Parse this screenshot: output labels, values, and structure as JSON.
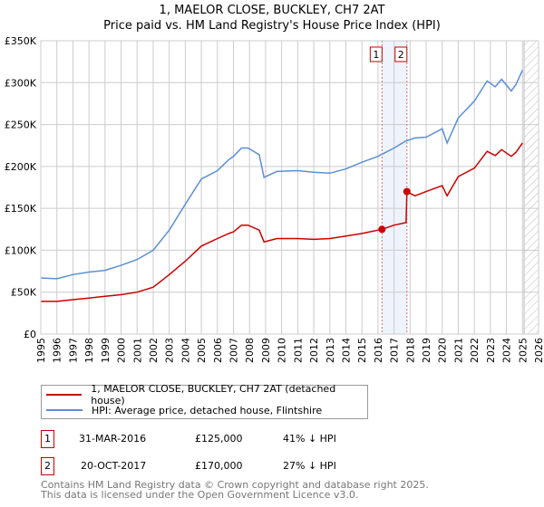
{
  "title": "1, MAELOR CLOSE, BUCKLEY, CH7 2AT",
  "subtitle": "Price paid vs. HM Land Registry's House Price Index (HPI)",
  "colors": {
    "property": "#cc0000",
    "hpi": "#5b8fd4",
    "grid": "#cccccc",
    "shade": "#eef3fc"
  },
  "chart_data": {
    "type": "line",
    "title": "1, MAELOR CLOSE, BUCKLEY, CH7 2AT — Price paid vs. HM Land Registry's House Price Index (HPI)",
    "xlim": [
      1995,
      2026
    ],
    "ylim": [
      0,
      350000
    ],
    "x_ticks": [
      "1995",
      "1996",
      "1997",
      "1998",
      "1999",
      "2000",
      "2001",
      "2002",
      "2003",
      "2004",
      "2005",
      "2006",
      "2007",
      "2008",
      "2009",
      "2010",
      "2011",
      "2012",
      "2013",
      "2014",
      "2015",
      "2016",
      "2017",
      "2018",
      "2019",
      "2020",
      "2021",
      "2022",
      "2023",
      "2024",
      "2025",
      "2026"
    ],
    "y_ticks": [
      {
        "v": 0,
        "label": "£0"
      },
      {
        "v": 50000,
        "label": "£50K"
      },
      {
        "v": 100000,
        "label": "£100K"
      },
      {
        "v": 150000,
        "label": "£150K"
      },
      {
        "v": 200000,
        "label": "£200K"
      },
      {
        "v": 250000,
        "label": "£250K"
      },
      {
        "v": 300000,
        "label": "£300K"
      },
      {
        "v": 350000,
        "label": "£350K"
      }
    ],
    "grid": true,
    "forecast_hatch_from": 2025.1,
    "shaded_range": [
      2016.25,
      2017.8
    ],
    "series": [
      {
        "name": "1, MAELOR CLOSE, BUCKLEY, CH7 2AT (detached house)",
        "color": "#cc0000",
        "x": [
          1995,
          1996,
          1997,
          1998,
          1999,
          2000,
          2001,
          2002,
          2003,
          2004,
          2005,
          2006,
          2006.7,
          2007,
          2007.5,
          2007.9,
          2008.6,
          2008.9,
          2009.7,
          2011,
          2012,
          2013,
          2014,
          2015,
          2016.25,
          2017,
          2017.75,
          2017.8,
          2018.3,
          2019,
          2020,
          2020.3,
          2021,
          2022,
          2022.8,
          2023.3,
          2023.7,
          2024.3,
          2024.6,
          2025
        ],
        "y": [
          39000,
          39000,
          41000,
          43000,
          45000,
          47000,
          50000,
          56000,
          71000,
          87000,
          105000,
          114000,
          120000,
          122000,
          130000,
          130000,
          124000,
          110000,
          114000,
          114000,
          113000,
          114000,
          117000,
          120000,
          125000,
          130000,
          133000,
          170000,
          165000,
          170000,
          177000,
          165000,
          188000,
          198000,
          218000,
          213000,
          220000,
          212000,
          217000,
          228000
        ]
      },
      {
        "name": "HPI: Average price, detached house, Flintshire",
        "color": "#5b8fd4",
        "x": [
          1995,
          1996,
          1997,
          1998,
          1999,
          2000,
          2001,
          2002,
          2003,
          2004,
          2005,
          2006,
          2006.7,
          2007,
          2007.5,
          2007.9,
          2008.6,
          2008.9,
          2009.7,
          2011,
          2012,
          2013,
          2014,
          2015,
          2016,
          2017,
          2017.7,
          2018.3,
          2019,
          2020,
          2020.3,
          2021,
          2022,
          2022.8,
          2023.3,
          2023.7,
          2024.3,
          2024.6,
          2025
        ],
        "y": [
          67000,
          66000,
          71000,
          74000,
          76000,
          82000,
          89000,
          100000,
          124000,
          155000,
          185000,
          195000,
          208000,
          212000,
          222000,
          222000,
          214000,
          187000,
          194000,
          195000,
          193000,
          192000,
          197000,
          205000,
          212000,
          222000,
          230000,
          234000,
          235000,
          245000,
          228000,
          258000,
          278000,
          302000,
          295000,
          304000,
          290000,
          298000,
          315000
        ]
      }
    ],
    "sales": [
      {
        "id": "1",
        "x": 2016.25,
        "y": 125000
      },
      {
        "id": "2",
        "x": 2017.8,
        "y": 170000
      }
    ],
    "legend_position": "bottom"
  },
  "table": [
    {
      "id": "1",
      "date": "31-MAR-2016",
      "price": "£125,000",
      "hpi": "41% ↓ HPI"
    },
    {
      "id": "2",
      "date": "20-OCT-2017",
      "price": "£170,000",
      "hpi": "27% ↓ HPI"
    }
  ],
  "footer": {
    "line1": "Contains HM Land Registry data © Crown copyright and database right 2025.",
    "line2": "This data is licensed under the Open Government Licence v3.0."
  }
}
